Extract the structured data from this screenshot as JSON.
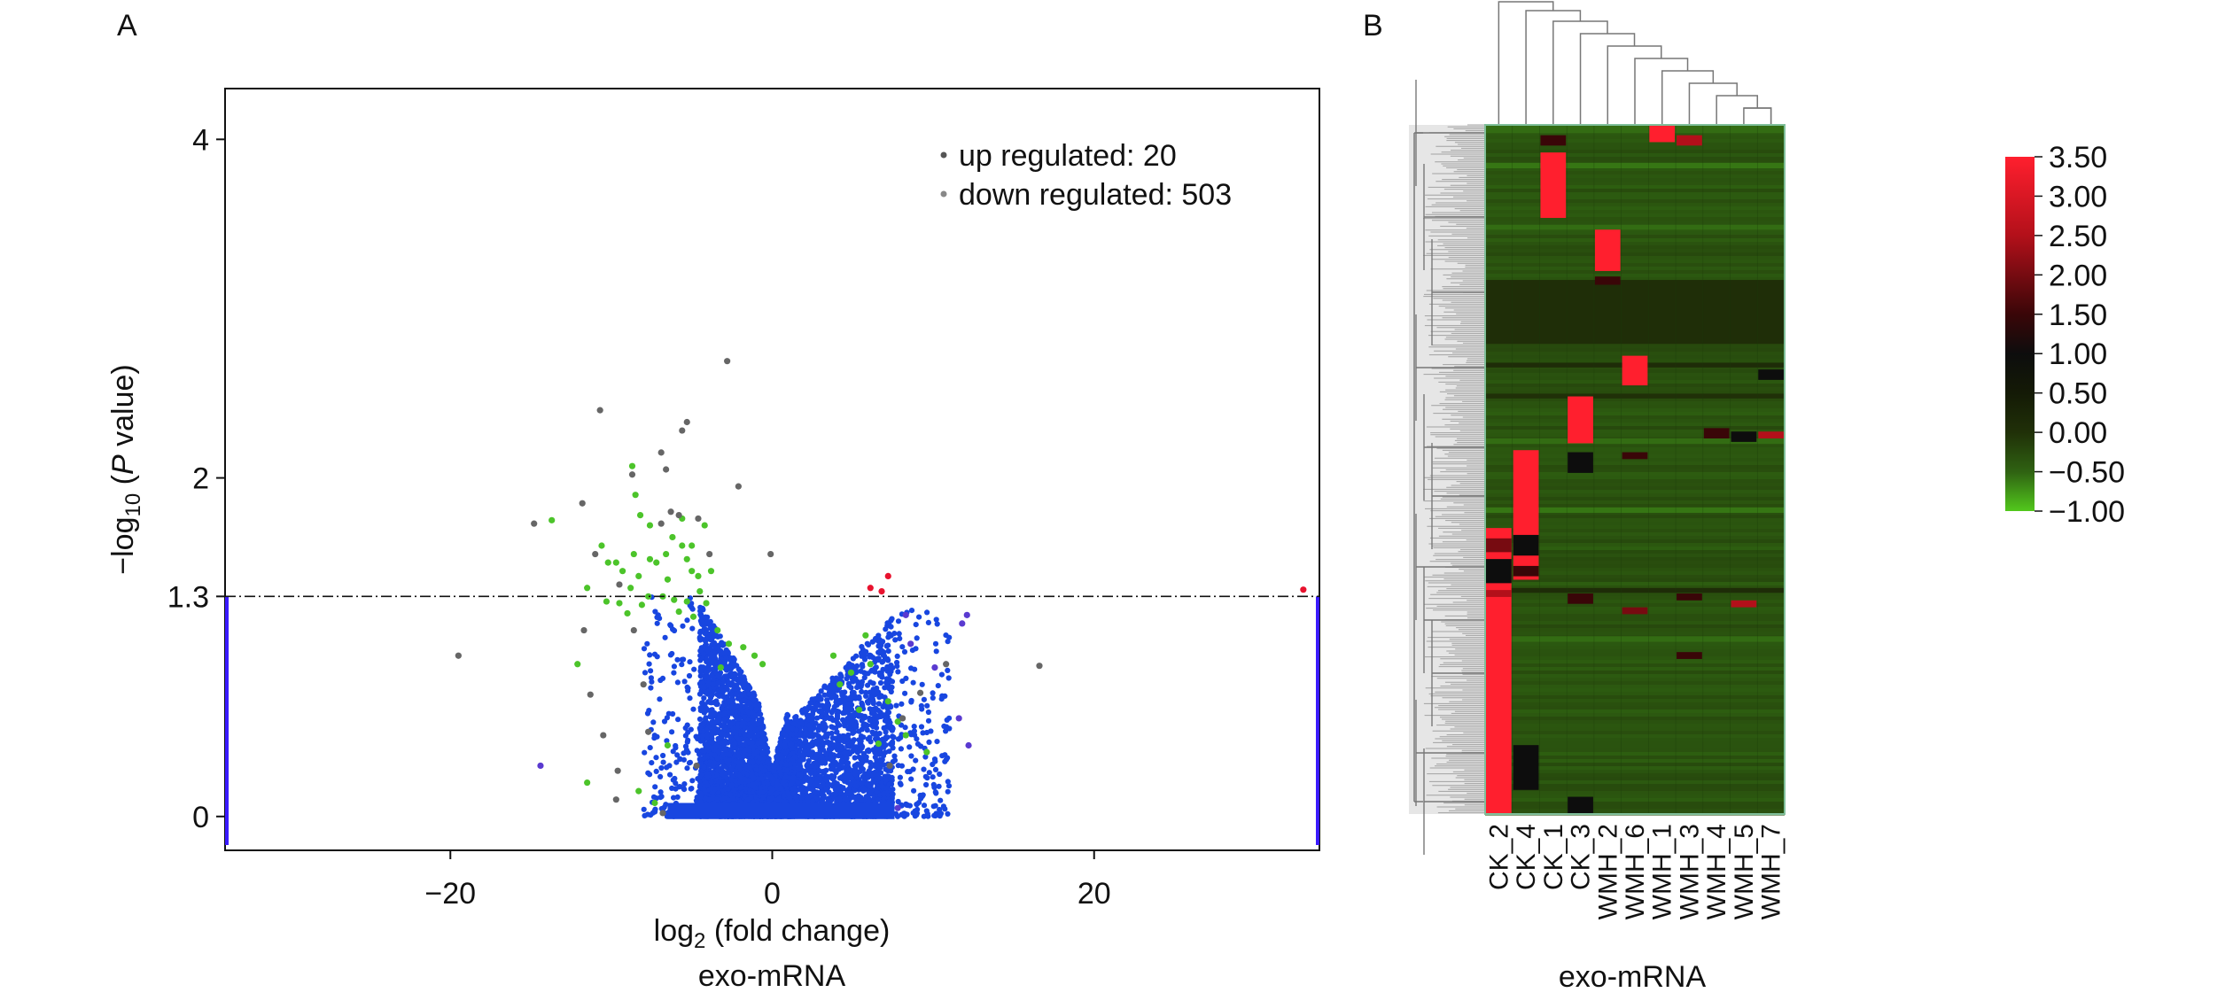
{
  "panels": {
    "a": {
      "letter": "A"
    },
    "b": {
      "letter": "B"
    }
  },
  "chart_data": [
    {
      "type": "scatter",
      "panel": "A",
      "title": "",
      "xlabel_main": "log",
      "xlabel_sub": "2",
      "xlabel_tail": " (fold change)",
      "xlabel2": "exo-mRNA",
      "ylabel_pre": "−log",
      "ylabel_sub": "10",
      "ylabel_open": " (",
      "ylabel_italic": "P",
      "ylabel_close": " value)",
      "xlim": [
        -34,
        34
      ],
      "ylim": [
        -0.2,
        4.3
      ],
      "x_ticks": [
        -20,
        0,
        20
      ],
      "x_tick_labels": [
        "−20",
        "0",
        "20"
      ],
      "y_ticks": [
        0,
        1.3,
        2,
        4
      ],
      "y_tick_labels": [
        "0",
        "1.3",
        "2",
        "4"
      ],
      "threshold": {
        "y": 1.3,
        "style": "dash-dot"
      },
      "grid": false,
      "legend_position": "top-right",
      "legend": [
        {
          "label": "up regulated: 20",
          "color": "#555555"
        },
        {
          "label": "down regulated: 503",
          "color": "#888888"
        }
      ],
      "colors": {
        "blue": "#1846e0",
        "green": "#4cc42a",
        "gray": "#666666",
        "red": "#e8122e",
        "purple": "#5a3ad0"
      },
      "points": {
        "gray": [
          [
            -19.5,
            0.95
          ],
          [
            -14.8,
            1.73
          ],
          [
            -11.8,
            1.85
          ],
          [
            -11,
            1.55
          ],
          [
            -11.7,
            1.1
          ],
          [
            -11.3,
            0.72
          ],
          [
            -10.5,
            0.48
          ],
          [
            -9.7,
            0.1
          ],
          [
            -9.6,
            0.27
          ],
          [
            -10.7,
            2.4
          ],
          [
            -8.7,
            2.02
          ],
          [
            -9.5,
            1.37
          ],
          [
            -8.6,
            1.1
          ],
          [
            -8,
            0.78
          ],
          [
            -7.7,
            0.5
          ],
          [
            -5.6,
            2.28
          ],
          [
            -6.9,
            2.15
          ],
          [
            -6.6,
            2.05
          ],
          [
            -5.3,
            2.33
          ],
          [
            -6.3,
            1.8
          ],
          [
            -6.9,
            1.73
          ],
          [
            -5.8,
            1.78
          ],
          [
            -4.6,
            1.76
          ],
          [
            -2.1,
            1.95
          ],
          [
            -3.9,
            1.55
          ],
          [
            -0.1,
            1.55
          ],
          [
            -2.8,
            2.69
          ],
          [
            -6.8,
            0.02
          ],
          [
            -4.7,
            0.3
          ],
          [
            16.6,
            0.89
          ],
          [
            7.3,
            0.3
          ],
          [
            8.1,
            0.58
          ],
          [
            9.2,
            0.73
          ],
          [
            10.8,
            0.9
          ]
        ],
        "green": [
          [
            -13.7,
            1.75
          ],
          [
            -11.5,
            1.35
          ],
          [
            -12.1,
            0.9
          ],
          [
            -10.6,
            1.6
          ],
          [
            -10.2,
            1.5
          ],
          [
            -9.7,
            1.5
          ],
          [
            -9.3,
            1.45
          ],
          [
            -10.3,
            1.27
          ],
          [
            -9.5,
            1.26
          ],
          [
            -8.8,
            1.35
          ],
          [
            -8.3,
            1.42
          ],
          [
            -7.6,
            1.52
          ],
          [
            -7.2,
            1.5
          ],
          [
            -6.6,
            1.55
          ],
          [
            -6.2,
            1.65
          ],
          [
            -5.6,
            1.6
          ],
          [
            -5.3,
            1.52
          ],
          [
            -5,
            1.45
          ],
          [
            -4.6,
            1.42
          ],
          [
            -7.7,
            1.3
          ],
          [
            -6.8,
            1.3
          ],
          [
            -6.1,
            1.28
          ],
          [
            -5.3,
            1.27
          ],
          [
            -5.6,
            1.76
          ],
          [
            -5,
            1.6
          ],
          [
            -4.5,
            1.33
          ],
          [
            -4.1,
            1.26
          ],
          [
            -8.7,
            2.07
          ],
          [
            -8.5,
            1.9
          ],
          [
            -8.2,
            1.78
          ],
          [
            -8.6,
            1.55
          ],
          [
            -4.2,
            1.72
          ],
          [
            -3.8,
            1.45
          ],
          [
            -8.1,
            1.25
          ],
          [
            -5.8,
            1.21
          ],
          [
            -4.9,
            1.18
          ],
          [
            -6.5,
            1.4
          ],
          [
            -7.6,
            1.72
          ],
          [
            -9,
            1.2
          ],
          [
            -3.4,
            1.1
          ],
          [
            -2.7,
            1.02
          ],
          [
            -1.8,
            1.0
          ],
          [
            -1.1,
            0.95
          ],
          [
            -0.6,
            0.9
          ],
          [
            3.8,
            0.95
          ],
          [
            4.9,
            0.85
          ],
          [
            5.8,
            1.07
          ],
          [
            7.2,
            0.68
          ],
          [
            8.3,
            0.48
          ],
          [
            9.6,
            0.38
          ],
          [
            6.6,
            0.43
          ],
          [
            7.8,
            0.56
          ],
          [
            5.4,
            0.63
          ],
          [
            4.2,
            0.78
          ],
          [
            6.1,
            0.9
          ],
          [
            -11.5,
            0.2
          ],
          [
            -8.3,
            0.15
          ],
          [
            -7.3,
            0.08
          ],
          [
            -6.5,
            0.42
          ],
          [
            -3.2,
            0.88
          ]
        ],
        "red": [
          [
            6.1,
            1.35
          ],
          [
            6.8,
            1.33
          ],
          [
            7.2,
            1.42
          ],
          [
            33,
            1.34
          ]
        ],
        "purple": [
          [
            -14.4,
            0.3
          ],
          [
            8.3,
            1.19
          ],
          [
            12.1,
            1.19
          ],
          [
            11.8,
            1.14
          ],
          [
            10.1,
            0.88
          ],
          [
            8.6,
            1.02
          ],
          [
            12.2,
            0.42
          ],
          [
            11.6,
            0.58
          ],
          [
            7.8,
            0.05
          ]
        ]
      }
    },
    {
      "type": "heatmap",
      "panel": "B",
      "title": "",
      "xlabel": "exo-mRNA",
      "columns": [
        "CK_2",
        "CK_4",
        "CK_1",
        "CK_3",
        "WMH_2",
        "WMH_6",
        "WMH_1",
        "WMH_3",
        "WMH_4",
        "WMH_5",
        "WMH_7"
      ],
      "colorbar": {
        "ticks": [
          "3.50",
          "3.00",
          "2.50",
          "2.00",
          "1.50",
          "1.00",
          "0.50",
          "0.00",
          "−0.50",
          "−1.00"
        ],
        "stops": [
          {
            "value": 3.5,
            "color": "#ff1f2e"
          },
          {
            "value": 2.5,
            "color": "#b3101a"
          },
          {
            "value": 1.5,
            "color": "#3a0608"
          },
          {
            "value": 1.0,
            "color": "#0d0d0d"
          },
          {
            "value": 0.5,
            "color": "#141a06"
          },
          {
            "value": 0.0,
            "color": "#203008"
          },
          {
            "value": -0.5,
            "color": "#2f6212"
          },
          {
            "value": -1.0,
            "color": "#52c81c"
          }
        ]
      },
      "background_value": -0.3,
      "row_bands": [
        {
          "rows": [
            0.0,
            0.012
          ],
          "value": -0.55
        },
        {
          "rows": [
            0.055,
            0.063
          ],
          "value": -0.6
        },
        {
          "rows": [
            0.145,
            0.152
          ],
          "value": -0.55
        },
        {
          "rows": [
            0.225,
            0.318
          ],
          "value": 0.05
        },
        {
          "rows": [
            0.345,
            0.352
          ],
          "value": 0.1
        },
        {
          "rows": [
            0.39,
            0.397
          ],
          "value": 0.0
        },
        {
          "rows": [
            0.455,
            0.463
          ],
          "value": -0.55
        },
        {
          "rows": [
            0.555,
            0.563
          ],
          "value": -0.6
        },
        {
          "rows": [
            0.672,
            0.679
          ],
          "value": 0.1
        },
        {
          "rows": [
            0.742,
            0.75
          ],
          "value": -0.55
        }
      ],
      "blocks": [
        {
          "col": 0,
          "rows": [
            0.585,
            1.0
          ],
          "value": 3.5
        },
        {
          "col": 0,
          "rows": [
            0.6,
            0.62
          ],
          "value": 2.0
        },
        {
          "col": 0,
          "rows": [
            0.63,
            0.665
          ],
          "value": 1.0
        },
        {
          "col": 0,
          "rows": [
            0.675,
            0.685
          ],
          "value": 2.5
        },
        {
          "col": 1,
          "rows": [
            0.472,
            0.66
          ],
          "value": 3.5
        },
        {
          "col": 1,
          "rows": [
            0.595,
            0.625
          ],
          "value": 1.0
        },
        {
          "col": 1,
          "rows": [
            0.64,
            0.655
          ],
          "value": 1.5
        },
        {
          "col": 1,
          "rows": [
            0.9,
            0.965
          ],
          "value": 1.0
        },
        {
          "col": 2,
          "rows": [
            0.04,
            0.135
          ],
          "value": 3.5
        },
        {
          "col": 2,
          "rows": [
            0.015,
            0.03
          ],
          "value": 1.5
        },
        {
          "col": 3,
          "rows": [
            0.394,
            0.462
          ],
          "value": 3.5
        },
        {
          "col": 3,
          "rows": [
            0.475,
            0.505
          ],
          "value": 1.0
        },
        {
          "col": 3,
          "rows": [
            0.975,
            1.0
          ],
          "value": 1.0
        },
        {
          "col": 3,
          "rows": [
            0.68,
            0.695
          ],
          "value": 1.5
        },
        {
          "col": 4,
          "rows": [
            0.152,
            0.212
          ],
          "value": 3.5
        },
        {
          "col": 4,
          "rows": [
            0.22,
            0.232
          ],
          "value": 1.5
        },
        {
          "col": 5,
          "rows": [
            0.335,
            0.378
          ],
          "value": 3.5
        },
        {
          "col": 5,
          "rows": [
            0.475,
            0.485
          ],
          "value": 1.5
        },
        {
          "col": 5,
          "rows": [
            0.7,
            0.71
          ],
          "value": 2.0
        },
        {
          "col": 6,
          "rows": [
            0.0,
            0.025
          ],
          "value": 3.5
        },
        {
          "col": 7,
          "rows": [
            0.015,
            0.03
          ],
          "value": 2.5
        },
        {
          "col": 7,
          "rows": [
            0.68,
            0.69
          ],
          "value": 1.5
        },
        {
          "col": 8,
          "rows": [
            0.44,
            0.455
          ],
          "value": 1.5
        },
        {
          "col": 9,
          "rows": [
            0.445,
            0.46
          ],
          "value": 1.0
        },
        {
          "col": 10,
          "rows": [
            0.445,
            0.455
          ],
          "value": 2.5
        },
        {
          "col": 10,
          "rows": [
            0.355,
            0.37
          ],
          "value": 1.0
        },
        {
          "col": 7,
          "rows": [
            0.765,
            0.775
          ],
          "value": 1.5
        },
        {
          "col": 9,
          "rows": [
            0.69,
            0.7
          ],
          "value": 2.5
        }
      ]
    }
  ]
}
